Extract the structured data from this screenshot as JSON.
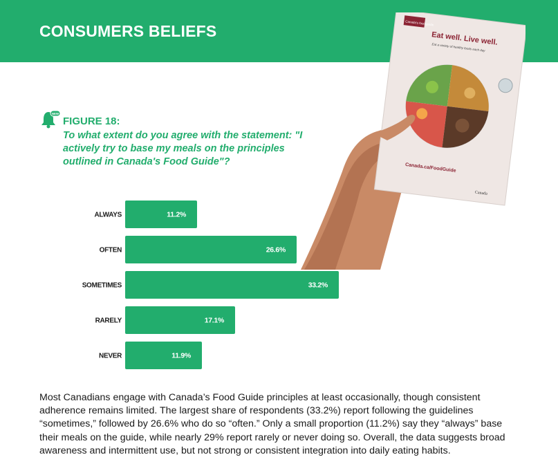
{
  "header": {
    "title": "CONSUMERS BELIEFS"
  },
  "figure": {
    "badge": "NEW",
    "label": "FIGURE 18:",
    "question": "To what extent do you agree with the statement: \"I actively try to base my meals on the principles outlined in Canada's Food Guide\"?"
  },
  "photo": {
    "brand": "Canada's food guide",
    "headline": "Eat well. Live well.",
    "subhead": "Eat a variety of healthy foods each day",
    "url": "Canada.ca/FoodGuide",
    "signature": "Canada"
  },
  "colors": {
    "accent": "#22ad6d",
    "text": "#1a1a1a"
  },
  "chart_data": {
    "type": "bar",
    "orientation": "horizontal",
    "categories": [
      "ALWAYS",
      "OFTEN",
      "SOMETIMES",
      "RARELY",
      "NEVER"
    ],
    "values": [
      11.2,
      26.6,
      33.2,
      17.1,
      11.9
    ],
    "value_labels": [
      "11.2%",
      "26.6%",
      "33.2%",
      "17.1%",
      "11.9%"
    ],
    "unit": "%",
    "xlim": [
      0,
      33.2
    ],
    "grid": false,
    "legend": "none"
  },
  "body": {
    "paragraph": "Most Canadians engage with Canada’s Food Guide principles at least occasionally, though consistent adherence remains limited. The largest share of respondents (33.2%) report following the guidelines “sometimes,” followed by 26.6% who do so “often.” Only a small proportion (11.2%) say they “always” base their meals on the guide, while nearly 29% report rarely or never doing so. Overall, the data suggests broad awareness and intermittent use, but not strong or consistent integration into daily eating habits."
  }
}
